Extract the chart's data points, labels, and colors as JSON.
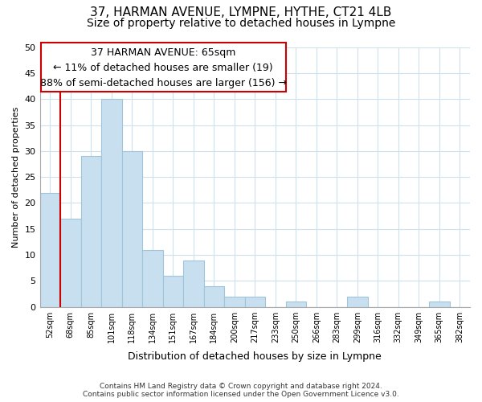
{
  "title": "37, HARMAN AVENUE, LYMPNE, HYTHE, CT21 4LB",
  "subtitle": "Size of property relative to detached houses in Lympne",
  "xlabel": "Distribution of detached houses by size in Lympne",
  "ylabel": "Number of detached properties",
  "footer_line1": "Contains HM Land Registry data © Crown copyright and database right 2024.",
  "footer_line2": "Contains public sector information licensed under the Open Government Licence v3.0.",
  "bin_labels": [
    "52sqm",
    "68sqm",
    "85sqm",
    "101sqm",
    "118sqm",
    "134sqm",
    "151sqm",
    "167sqm",
    "184sqm",
    "200sqm",
    "217sqm",
    "233sqm",
    "250sqm",
    "266sqm",
    "283sqm",
    "299sqm",
    "316sqm",
    "332sqm",
    "349sqm",
    "365sqm",
    "382sqm"
  ],
  "bar_heights": [
    22,
    17,
    29,
    40,
    30,
    11,
    6,
    9,
    4,
    2,
    2,
    0,
    1,
    0,
    0,
    2,
    0,
    0,
    0,
    1,
    0
  ],
  "bar_color": "#c8dff0",
  "bar_edge_color": "#a0c4d8",
  "red_line_x": 0.5,
  "red_line_color": "#cc0000",
  "annotation_text_line1": "37 HARMAN AVENUE: 65sqm",
  "annotation_text_line2": "← 11% of detached houses are smaller (19)",
  "annotation_text_line3": "88% of semi-detached houses are larger (156) →",
  "annotation_border_color": "#cc0000",
  "ylim": [
    0,
    50
  ],
  "yticks": [
    0,
    5,
    10,
    15,
    20,
    25,
    30,
    35,
    40,
    45,
    50
  ],
  "grid_color": "#cde0ee",
  "background_color": "#ffffff",
  "title_fontsize": 11,
  "subtitle_fontsize": 10,
  "annotation_fontsize": 9
}
